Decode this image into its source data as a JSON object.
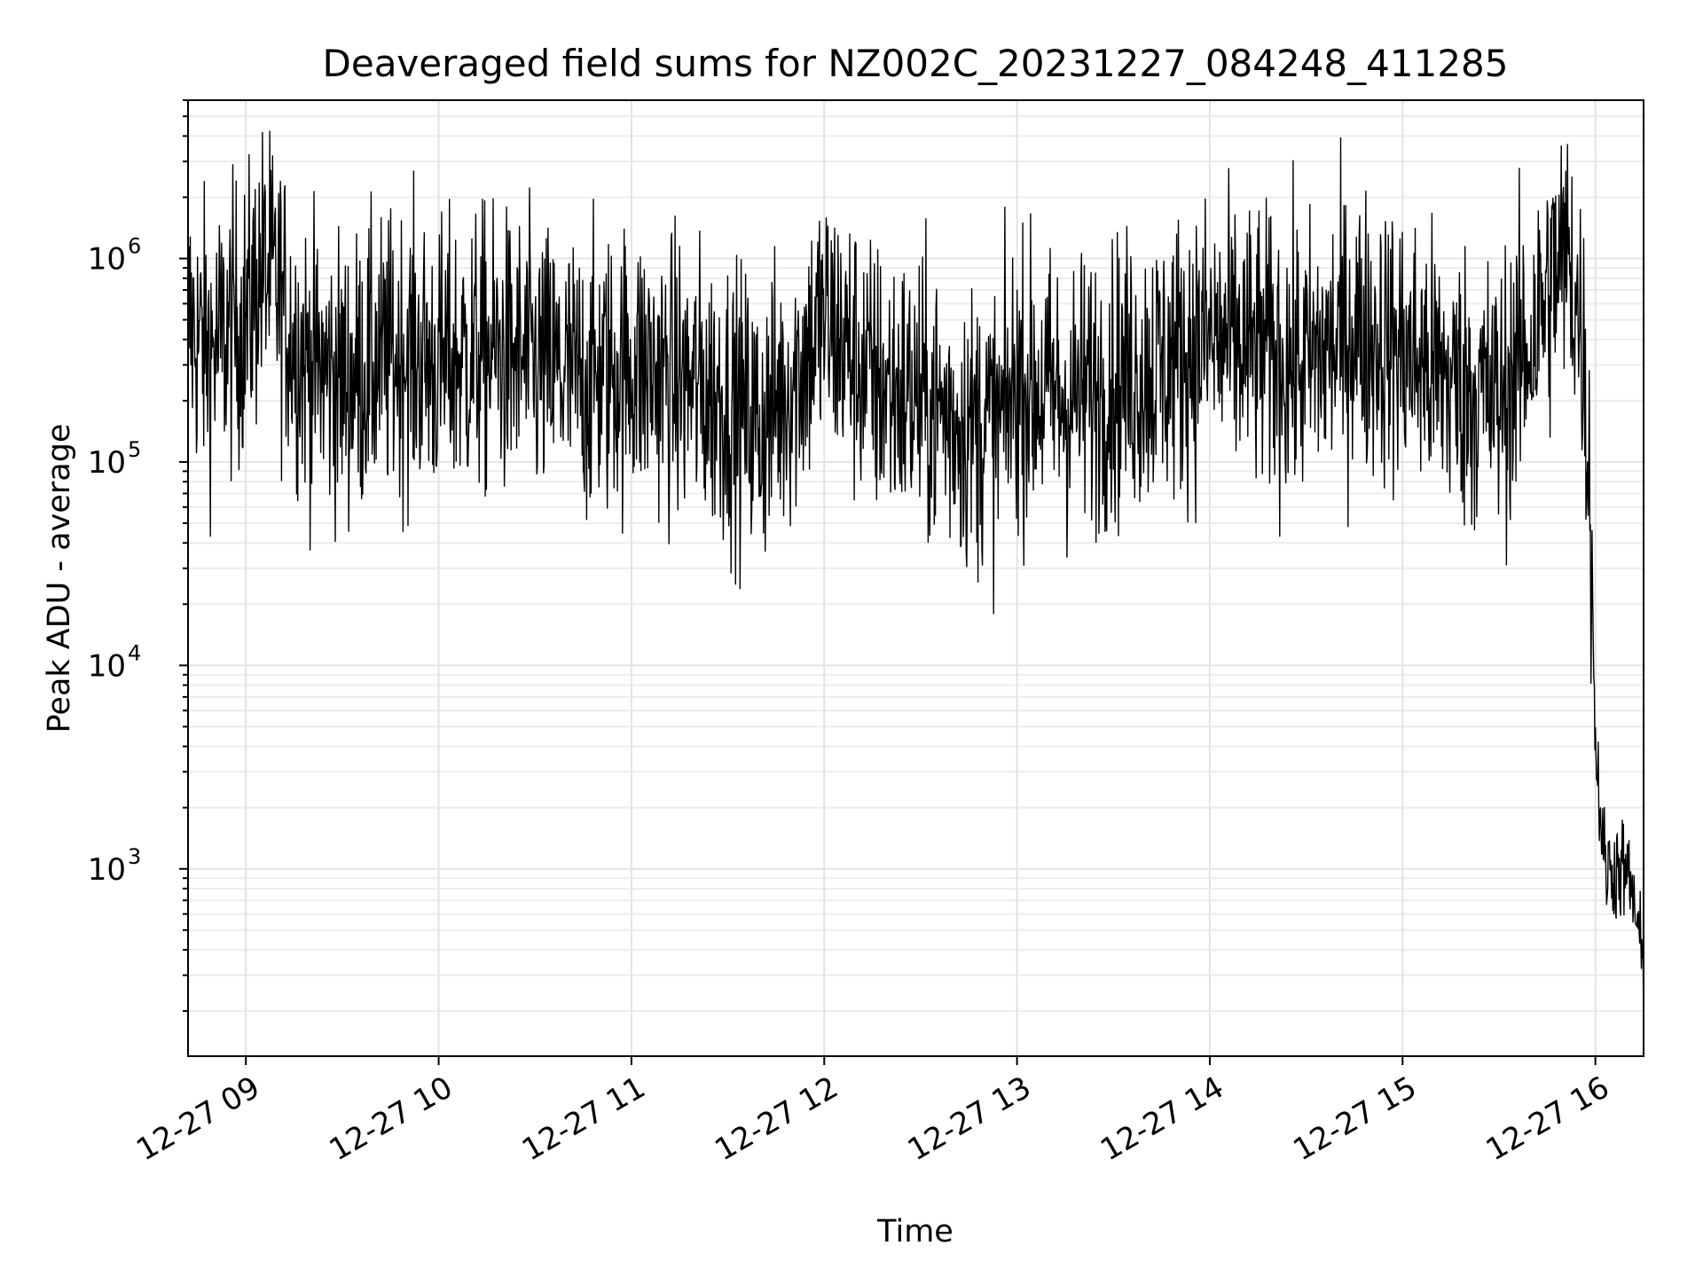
{
  "chart_data": {
    "type": "line",
    "title": "Deaveraged field sums for NZ002C_20231227_084248_411285",
    "xlabel": "Time",
    "ylabel": "Peak ADU - average",
    "yscale": "log",
    "ylim": [
      120,
      6000000
    ],
    "xlim": [
      "2023-12-27 08:42",
      "2023-12-27 16:15"
    ],
    "grid": true,
    "line_color": "#000000",
    "x_ticks": [
      {
        "label": "12-27 09",
        "time": "2023-12-27 09:00"
      },
      {
        "label": "12-27 10",
        "time": "2023-12-27 10:00"
      },
      {
        "label": "12-27 11",
        "time": "2023-12-27 11:00"
      },
      {
        "label": "12-27 12",
        "time": "2023-12-27 12:00"
      },
      {
        "label": "12-27 13",
        "time": "2023-12-27 13:00"
      },
      {
        "label": "12-27 14",
        "time": "2023-12-27 14:00"
      },
      {
        "label": "12-27 15",
        "time": "2023-12-27 15:00"
      },
      {
        "label": "12-27 16",
        "time": "2023-12-27 16:00"
      }
    ],
    "y_ticks": [
      {
        "base": "10",
        "exp": "3",
        "value": 1000
      },
      {
        "base": "10",
        "exp": "4",
        "value": 10000
      },
      {
        "base": "10",
        "exp": "5",
        "value": 100000
      },
      {
        "base": "10",
        "exp": "6",
        "value": 1000000
      }
    ],
    "series": [
      {
        "x": [
          "2023-12-27 08:42",
          "2023-12-27 08:45",
          "2023-12-27 08:50",
          "2023-12-27 08:55",
          "2023-12-27 09:00",
          "2023-12-27 09:05",
          "2023-12-27 09:10",
          "2023-12-27 09:15",
          "2023-12-27 09:20",
          "2023-12-27 09:30",
          "2023-12-27 09:40",
          "2023-12-27 09:50",
          "2023-12-27 10:00",
          "2023-12-27 10:15",
          "2023-12-27 10:30",
          "2023-12-27 10:45",
          "2023-12-27 11:00",
          "2023-12-27 11:15",
          "2023-12-27 11:30",
          "2023-12-27 11:40",
          "2023-12-27 11:50",
          "2023-12-27 12:00",
          "2023-12-27 12:15",
          "2023-12-27 12:30",
          "2023-12-27 12:45",
          "2023-12-27 12:55",
          "2023-12-27 13:00",
          "2023-12-27 13:15",
          "2023-12-27 13:30",
          "2023-12-27 13:45",
          "2023-12-27 14:00",
          "2023-12-27 14:15",
          "2023-12-27 14:30",
          "2023-12-27 14:45",
          "2023-12-27 15:00",
          "2023-12-27 15:15",
          "2023-12-27 15:30",
          "2023-12-27 15:40",
          "2023-12-27 15:48",
          "2023-12-27 15:52",
          "2023-12-27 15:56",
          "2023-12-27 15:58",
          "2023-12-27 15:59",
          "2023-12-27 16:00",
          "2023-12-27 16:03",
          "2023-12-27 16:06",
          "2023-12-27 16:09",
          "2023-12-27 16:12",
          "2023-12-27 16:15"
        ],
        "y": [
          500000,
          400000,
          350000,
          450000,
          500000,
          900000,
          700000,
          400000,
          300000,
          250000,
          300000,
          350000,
          300000,
          350000,
          300000,
          250000,
          300000,
          250000,
          200000,
          150000,
          250000,
          500000,
          250000,
          200000,
          150000,
          150000,
          250000,
          200000,
          250000,
          300000,
          400000,
          350000,
          300000,
          450000,
          350000,
          250000,
          200000,
          400000,
          900000,
          1000000,
          400000,
          100000,
          30000,
          4000,
          1000,
          1000,
          1000,
          700,
          300
        ],
        "noise": 0.35
      }
    ]
  }
}
